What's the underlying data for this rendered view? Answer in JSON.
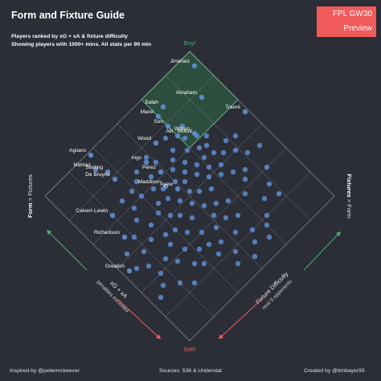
{
  "header": {
    "title": "Form and Fixture Guide",
    "subtitle_1": "Players ranked by xG + xA & fixture difficulty",
    "subtitle_2": "Showing players with 1000+ mins. All stats per 90 min"
  },
  "badge": {
    "line1": "FPL GW30",
    "line2": "Preview",
    "color": "#f05a5a"
  },
  "footer": {
    "left": "Inspired by @petermckeever",
    "middle": "Sources: 538 & Understat",
    "right": "Created by @timbayer93"
  },
  "chart_data": {
    "type": "scatter",
    "colors": {
      "point": "#5b87c6",
      "buy_zone": "#2f5a43",
      "buy": "#4caf6e",
      "sell": "#f05a5a",
      "grid": "#9a9ca3"
    },
    "corner_labels": {
      "top": "Buy!",
      "bottom": "Sell!"
    },
    "left_axis": {
      "bold": "Form",
      "rest": " > Fixtures"
    },
    "right_axis": {
      "bold": "Fixtures",
      "rest": " > Form"
    },
    "bottom_left_axis": {
      "line1": "xG + xA",
      "line2": "penalties excluded"
    },
    "bottom_right_axis": {
      "line1": "Fixture Difficulty",
      "line2": "next 5 opponents"
    },
    "x_range": [
      0,
      6
    ],
    "y_range": [
      0,
      6
    ],
    "labeled_points": [
      {
        "name": "Jiménez",
        "xga": 5.6,
        "fix": 5.8
      },
      {
        "name": "Abraham",
        "xga": 4.8,
        "fix": 5.3
      },
      {
        "name": "Salah",
        "xga": 5.4,
        "fix": 4.3
      },
      {
        "name": "Traoré",
        "xga": 3.6,
        "fix": 5.9
      },
      {
        "name": "Mané",
        "xga": 5.3,
        "fix": 4.0
      },
      {
        "name": "Son",
        "xga": 4.9,
        "fix": 4.0
      },
      {
        "name": "Willian",
        "xga": 4.2,
        "fix": 4.4
      },
      {
        "name": "Alli",
        "xga": 4.5,
        "fix": 4.0
      },
      {
        "name": "Mount",
        "xga": 4.1,
        "fix": 4.4
      },
      {
        "name": "Agüero",
        "xga": 5.9,
        "fix": 1.8
      },
      {
        "name": "Mahrez",
        "xga": 5.5,
        "fix": 1.6
      },
      {
        "name": "Sterling",
        "xga": 5.2,
        "fix": 1.8
      },
      {
        "name": "De Bruyne",
        "xga": 4.9,
        "fix": 1.8
      },
      {
        "name": "Wood",
        "xga": 4.8,
        "fix": 3.4
      },
      {
        "name": "Ings",
        "xga": 4.6,
        "fix": 2.8
      },
      {
        "name": "Pérez",
        "xga": 4.1,
        "fix": 2.9
      },
      {
        "name": "Calvert-Lewin",
        "xga": 4.2,
        "fix": 1.0
      },
      {
        "name": "Maddison",
        "xga": 3.7,
        "fix": 2.7
      },
      {
        "name": "Ayew",
        "xga": 3.4,
        "fix": 2.9
      },
      {
        "name": "Richarlison",
        "xga": 3.5,
        "fix": 0.8
      },
      {
        "name": "Grealish",
        "xga": 2.7,
        "fix": 0.2
      }
    ],
    "other_points": [
      [
        4.6,
        4.3
      ],
      [
        4.3,
        4.1
      ],
      [
        4.0,
        3.9
      ],
      [
        3.8,
        4.2
      ],
      [
        3.7,
        4.4
      ],
      [
        3.9,
        4.6
      ],
      [
        3.5,
        4.1
      ],
      [
        3.4,
        4.4
      ],
      [
        3.2,
        4.6
      ],
      [
        3.0,
        4.3
      ],
      [
        3.2,
        4.0
      ],
      [
        3.5,
        3.8
      ],
      [
        3.8,
        3.6
      ],
      [
        3.6,
        3.4
      ],
      [
        3.3,
        3.6
      ],
      [
        3.0,
        3.8
      ],
      [
        2.8,
        4.1
      ],
      [
        2.6,
        4.4
      ],
      [
        2.4,
        4.7
      ],
      [
        2.7,
        3.6
      ],
      [
        2.9,
        3.3
      ],
      [
        3.1,
        3.1
      ],
      [
        3.4,
        3.2
      ],
      [
        3.6,
        3.0
      ],
      [
        3.9,
        3.2
      ],
      [
        4.1,
        3.4
      ],
      [
        4.3,
        3.6
      ],
      [
        3.7,
        2.6
      ],
      [
        3.4,
        2.5
      ],
      [
        3.1,
        2.7
      ],
      [
        2.8,
        2.9
      ],
      [
        2.5,
        3.1
      ],
      [
        2.3,
        3.4
      ],
      [
        2.1,
        3.7
      ],
      [
        2.5,
        2.6
      ],
      [
        2.8,
        2.4
      ],
      [
        3.0,
        2.2
      ],
      [
        3.3,
        2.0
      ],
      [
        2.6,
        2.0
      ],
      [
        2.3,
        2.2
      ],
      [
        2.0,
        2.5
      ],
      [
        1.8,
        2.9
      ],
      [
        2.1,
        3.1
      ],
      [
        2.7,
        1.7
      ],
      [
        2.4,
        1.6
      ],
      [
        2.0,
        1.8
      ],
      [
        1.7,
        2.1
      ],
      [
        3.5,
        2.2
      ],
      [
        3.9,
        2.4
      ],
      [
        4.2,
        2.6
      ],
      [
        4.4,
        2.2
      ],
      [
        4.6,
        2.4
      ],
      [
        4.0,
        2.0
      ],
      [
        3.2,
        1.6
      ],
      [
        2.9,
        1.3
      ],
      [
        2.2,
        1.2
      ],
      [
        1.9,
        1.4
      ],
      [
        1.5,
        1.7
      ],
      [
        1.3,
        1.9
      ],
      [
        1.6,
        2.4
      ],
      [
        3.6,
        1.4
      ],
      [
        3.9,
        1.6
      ],
      [
        4.3,
        1.5
      ],
      [
        3.3,
        1.0
      ],
      [
        2.8,
        0.9
      ],
      [
        2.4,
        0.7
      ],
      [
        2.0,
        0.8
      ],
      [
        1.7,
        0.6
      ],
      [
        1.4,
        1.0
      ],
      [
        1.1,
        1.3
      ],
      [
        3.1,
        0.5
      ],
      [
        2.6,
        0.4
      ],
      [
        1.5,
        0.3
      ],
      [
        3.0,
        4.9
      ],
      [
        2.7,
        5.1
      ],
      [
        3.3,
        5.2
      ],
      [
        1.6,
        4.9
      ],
      [
        1.9,
        4.2
      ],
      [
        1.4,
        4.5
      ],
      [
        1.2,
        4.9
      ],
      [
        1.0,
        4.2
      ],
      [
        1.6,
        3.6
      ],
      [
        1.3,
        3.2
      ],
      [
        1.0,
        3.6
      ],
      [
        0.8,
        4.0
      ],
      [
        0.7,
        3.4
      ],
      [
        0.5,
        3.8
      ],
      [
        1.8,
        3.3
      ],
      [
        0.9,
        2.8
      ],
      [
        0.6,
        2.6
      ],
      [
        1.2,
        2.4
      ],
      [
        2.2,
        4.5
      ],
      [
        4.4,
        3.0
      ],
      [
        4.7,
        3.7
      ],
      [
        2.0,
        5.2
      ],
      [
        3.4,
        4.9
      ],
      [
        4.7,
        2.9
      ],
      [
        4.3,
        1.9
      ],
      [
        1.4,
        2.7
      ],
      [
        0.4,
        3.1
      ],
      [
        2.6,
        5.5
      ]
    ]
  }
}
